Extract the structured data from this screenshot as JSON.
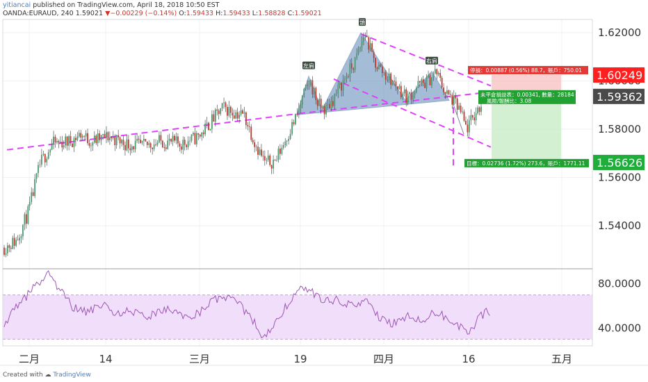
{
  "header": {
    "author": "yitiancai",
    "published_text": "published on TradingView.com, April 18, 2018 10:50 EST",
    "symbol_line": "OANDA:EURAUD, 240",
    "last": "1.59021",
    "change": "▼−0.00229 (−0.14%)",
    "o_label": "O:",
    "o_value": "1.59433",
    "h_label": "H:",
    "h_value": "1.59433",
    "l_label": "L:",
    "l_value": "1.58828",
    "c_label": "C:",
    "c_value": "1.59021"
  },
  "footer": {
    "created_with": "Created with",
    "brand": "TradingView"
  },
  "colors": {
    "candle_up": "#4b9a70",
    "candle_down": "#c0392b",
    "pattern_fill": "#5b86b4",
    "trendline": "#e040fb",
    "stop_zone": "#f8c3c3",
    "target_zone": "#c8ecc8",
    "rsi_band": "#f1defa",
    "rsi_line": "#9b54b5"
  },
  "chart_data": {
    "type": "candlestick",
    "symbol": "OANDA:EURAUD",
    "interval": "240",
    "price_axis": {
      "range": [
        1.5225,
        1.6255
      ],
      "ticks": [
        "1.62000",
        "1.60000",
        "1.58000",
        "1.56000",
        "1.54000"
      ]
    },
    "x_axis": {
      "ticks": [
        "二月",
        "14",
        "三月",
        "19",
        "四月",
        "16",
        "五月"
      ]
    },
    "price_path": [
      [
        0,
        1.531
      ],
      [
        18,
        1.534
      ],
      [
        35,
        1.546
      ],
      [
        52,
        1.566
      ],
      [
        70,
        1.574
      ],
      [
        95,
        1.575
      ],
      [
        110,
        1.578
      ],
      [
        125,
        1.575
      ],
      [
        150,
        1.577
      ],
      [
        175,
        1.574
      ],
      [
        200,
        1.573
      ],
      [
        225,
        1.575
      ],
      [
        255,
        1.574
      ],
      [
        280,
        1.577
      ],
      [
        300,
        1.584
      ],
      [
        315,
        1.589
      ],
      [
        330,
        1.587
      ],
      [
        345,
        1.586
      ],
      [
        360,
        1.575
      ],
      [
        375,
        1.566
      ],
      [
        390,
        1.567
      ],
      [
        405,
        1.576
      ],
      [
        420,
        1.585
      ],
      [
        432,
        1.595
      ],
      [
        440,
        1.6
      ],
      [
        452,
        1.59
      ],
      [
        462,
        1.588
      ],
      [
        472,
        1.592
      ],
      [
        490,
        1.601
      ],
      [
        505,
        1.608
      ],
      [
        519,
        1.62
      ],
      [
        532,
        1.608
      ],
      [
        550,
        1.602
      ],
      [
        565,
        1.598
      ],
      [
        580,
        1.593
      ],
      [
        595,
        1.598
      ],
      [
        610,
        1.6
      ],
      [
        621,
        1.604
      ],
      [
        635,
        1.595
      ],
      [
        645,
        1.592
      ],
      [
        655,
        1.588
      ],
      [
        665,
        1.58
      ],
      [
        675,
        1.585
      ],
      [
        685,
        1.59
      ],
      [
        694,
        1.593
      ]
    ],
    "pattern": {
      "name": "head and shoulders",
      "labels": {
        "left_shoulder": "左肩",
        "head": "頭",
        "right_shoulder": "右肩"
      },
      "left_shoulder_price": 1.602,
      "head_price": 1.62,
      "right_shoulder_price": 1.604
    },
    "position": {
      "current_price": "1.59362",
      "stop_price": "1.60249",
      "target_price": "1.56626",
      "stop_label": "停損：0.00887 (0.56%) 88.7，賬戶：750.01",
      "open_pl_label": "未平倉損益表：0.00341, 數量：28184",
      "risk_reward_label": "風險/報酬比：3.08",
      "target_label": "目標：0.02736 (1.72%) 273.6，賬戶：1771.11"
    },
    "rsi": {
      "axis_ticks": [
        "80.0000",
        "40.0000"
      ],
      "range": [
        24,
        93
      ],
      "band": [
        30,
        70
      ],
      "path": [
        [
          0,
          45
        ],
        [
          20,
          60
        ],
        [
          45,
          78
        ],
        [
          65,
          90
        ],
        [
          80,
          74
        ],
        [
          100,
          58
        ],
        [
          120,
          54
        ],
        [
          140,
          62
        ],
        [
          160,
          52
        ],
        [
          180,
          56
        ],
        [
          200,
          50
        ],
        [
          220,
          53
        ],
        [
          240,
          57
        ],
        [
          260,
          50
        ],
        [
          280,
          54
        ],
        [
          300,
          65
        ],
        [
          320,
          68
        ],
        [
          340,
          60
        ],
        [
          360,
          46
        ],
        [
          372,
          28
        ],
        [
          385,
          42
        ],
        [
          400,
          55
        ],
        [
          415,
          68
        ],
        [
          430,
          77
        ],
        [
          445,
          72
        ],
        [
          460,
          64
        ],
        [
          480,
          66
        ],
        [
          500,
          60
        ],
        [
          520,
          65
        ],
        [
          540,
          48
        ],
        [
          560,
          44
        ],
        [
          580,
          52
        ],
        [
          600,
          45
        ],
        [
          620,
          55
        ],
        [
          640,
          48
        ],
        [
          655,
          42
        ],
        [
          668,
          32
        ],
        [
          680,
          48
        ],
        [
          695,
          56
        ],
        [
          706,
          48
        ]
      ]
    }
  }
}
